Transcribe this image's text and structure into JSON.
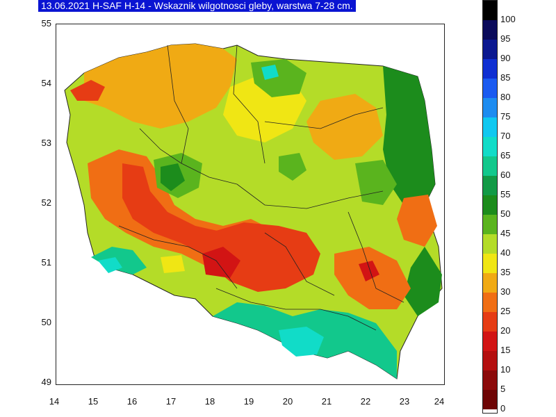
{
  "title": "13.06.2021 H-SAF H-14 - Wskaznik wilgotnosci gleby, warstwa 7-28 cm.",
  "map": {
    "x_ticks": [
      "14",
      "15",
      "16",
      "17",
      "18",
      "19",
      "20",
      "21",
      "22",
      "23",
      "24"
    ],
    "y_ticks": [
      "55",
      "54",
      "53",
      "52",
      "51",
      "50",
      "49"
    ]
  },
  "legend": {
    "labels": [
      "100",
      "95",
      "90",
      "85",
      "80",
      "75",
      "70",
      "65",
      "60",
      "55",
      "50",
      "45",
      "40",
      "35",
      "30",
      "25",
      "20",
      "15",
      "10",
      "5",
      "0"
    ],
    "colors": [
      "#000000",
      "#0a0a5a",
      "#0b1890",
      "#0f2fd2",
      "#1a5af0",
      "#1d8cf0",
      "#10c8f0",
      "#11dcc8",
      "#12c88c",
      "#129a46",
      "#1c8c1c",
      "#5ab41e",
      "#b4dc28",
      "#f0e614",
      "#f0aa14",
      "#f06e14",
      "#e63c14",
      "#d21414",
      "#b40f0f",
      "#8c0a0a",
      "#6e0505"
    ]
  },
  "regions": [
    {
      "name": "west-red-core",
      "color": "#e63c14"
    },
    {
      "name": "central-red",
      "color": "#e63c14"
    },
    {
      "name": "south-green",
      "color": "#12c88c"
    },
    {
      "name": "east-green",
      "color": "#1c8c1c"
    },
    {
      "name": "north-orange",
      "color": "#f0aa14"
    },
    {
      "name": "center-yellow",
      "color": "#f0e614"
    }
  ]
}
